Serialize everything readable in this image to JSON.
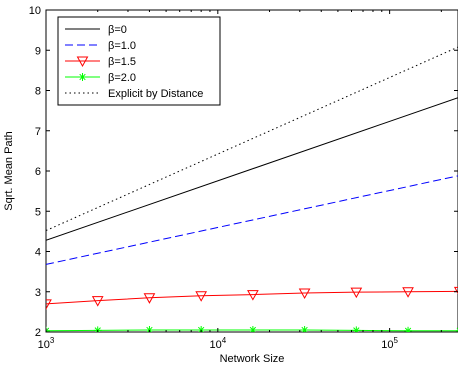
{
  "chart_data": {
    "type": "line",
    "xlabel": "Network Size",
    "ylabel": "Sqrt. Mean Path",
    "xscale": "log",
    "xlim": [
      1000,
      250000
    ],
    "ylim": [
      2,
      10
    ],
    "yticks": [
      2,
      3,
      4,
      5,
      6,
      7,
      8,
      9,
      10
    ],
    "xticks": [
      {
        "value": 1000,
        "base": "10",
        "exp": "3"
      },
      {
        "value": 10000,
        "base": "10",
        "exp": "4"
      },
      {
        "value": 100000,
        "base": "10",
        "exp": "5"
      }
    ],
    "legend_position": "top-left",
    "grid": false,
    "series": [
      {
        "name": "β=0",
        "color": "#000000",
        "style": "solid",
        "marker": "none",
        "x": [
          1000,
          250000
        ],
        "y": [
          4.28,
          7.82
        ]
      },
      {
        "name": "β=1.0",
        "color": "#0000ff",
        "style": "dashed",
        "marker": "none",
        "x": [
          1000,
          250000
        ],
        "y": [
          3.68,
          5.88
        ]
      },
      {
        "name": "β=1.5",
        "color": "#ff0000",
        "style": "solid",
        "marker": "triangle-down",
        "x": [
          1000,
          2000,
          4000,
          8000,
          16000,
          32000,
          64000,
          128000,
          256000
        ],
        "y": [
          2.7,
          2.78,
          2.85,
          2.9,
          2.93,
          2.97,
          2.99,
          3.0,
          3.01
        ]
      },
      {
        "name": "β=2.0",
        "color": "#00ff00",
        "style": "solid",
        "marker": "asterisk",
        "x": [
          1000,
          2000,
          4000,
          8000,
          16000,
          32000,
          64000,
          128000,
          256000
        ],
        "y": [
          2.03,
          2.04,
          2.05,
          2.05,
          2.05,
          2.05,
          2.04,
          2.03,
          2.03
        ]
      },
      {
        "name": "Explicit by Distance",
        "color": "#000000",
        "style": "dotted",
        "marker": "none",
        "x": [
          1000,
          250000
        ],
        "y": [
          4.52,
          9.08
        ]
      }
    ]
  }
}
